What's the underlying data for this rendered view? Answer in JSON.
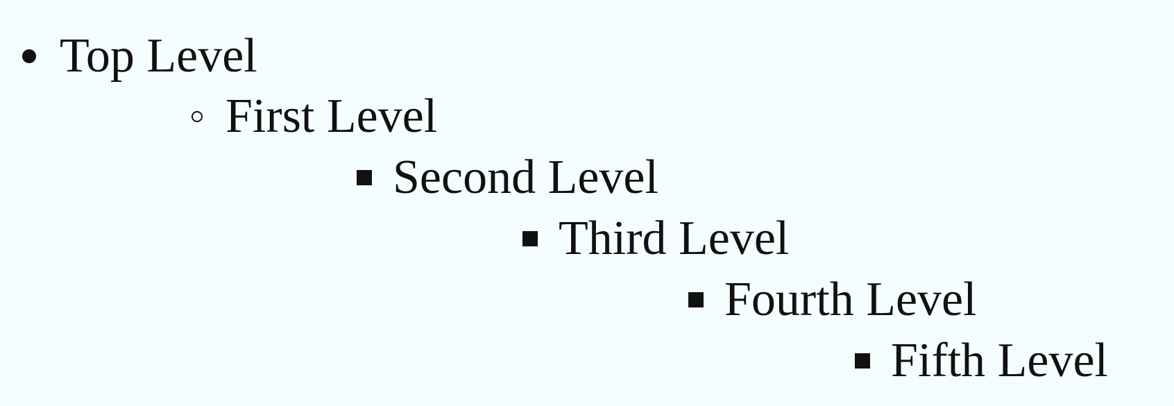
{
  "list": {
    "top_level": {
      "label": "Top Level",
      "marker": "disc-bullet-icon"
    },
    "first_level": {
      "label": "First Level",
      "marker": "circle-bullet-icon"
    },
    "second_level": {
      "label": "Second Level",
      "marker": "square-bullet-icon"
    },
    "third_level": {
      "label": "Third Level",
      "marker": "square-bullet-icon"
    },
    "fourth_level": {
      "label": "Fourth Level",
      "marker": "square-bullet-icon"
    },
    "fifth_level": {
      "label": "Fifth Level",
      "marker": "square-bullet-icon"
    }
  },
  "colors": {
    "background": "#f4feff",
    "text": "#111111"
  }
}
